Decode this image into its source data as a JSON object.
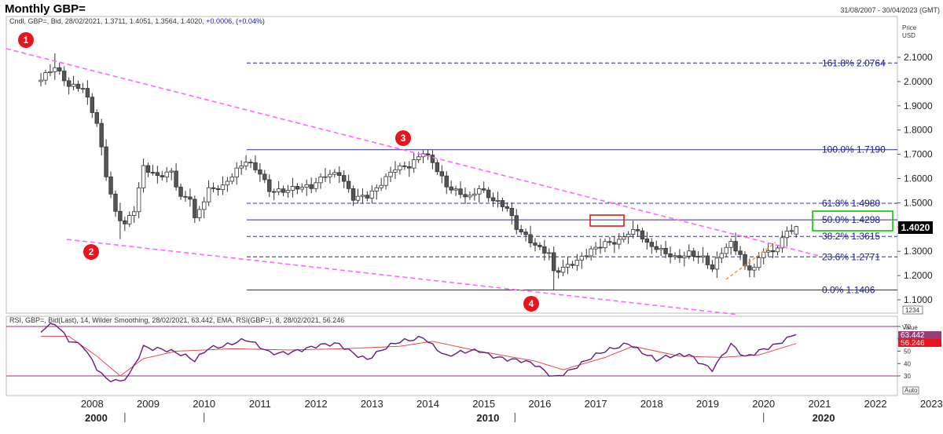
{
  "header": {
    "title": "Monthly GBP=",
    "date_range": "31/08/2007 - 30/04/2023 (GMT)",
    "description_prefix": "Cndl, GBP=, Bid, 28/02/2021, 1.3711, 1.4051, 1.3564, 1.4020,",
    "description_change": "+0.0006, (+0.04%)"
  },
  "price_axis": {
    "title_line1": "Price",
    "title_line2": "USD",
    "ticks": [
      "2.1000",
      "2.0000",
      "1.9000",
      "1.8000",
      "1.7000",
      "1.6000",
      "1.5000",
      "1.4000",
      "1.3000",
      "1.2000",
      "1.1000"
    ],
    "current_price": "1.4020",
    "extra_box": "1234"
  },
  "rsi_panel": {
    "description": "RSI, GBP=, Bid(Last), 14, Wilder Smoothing, 28/02/2021, 63.442, EMA, RSI(GBP=), 8, 28/02/2021, 56.246",
    "value_header": "Value",
    "rsi_value": "63.442",
    "ema_value": "56.246",
    "ticks": [
      "70",
      "60",
      "50",
      "40",
      "30"
    ],
    "auto_label": "Auto"
  },
  "x_axis": {
    "years": [
      "2008",
      "2009",
      "2010",
      "2011",
      "2012",
      "2013",
      "2014",
      "2015",
      "2016",
      "2017",
      "2018",
      "2019",
      "2020",
      "2021",
      "2022",
      "2023"
    ],
    "decades": [
      "2000",
      "2010",
      "2020"
    ]
  },
  "fibonacci": [
    {
      "label": "161.8%",
      "value": "2.0764",
      "price": 2.0764
    },
    {
      "label": "100.0%",
      "value": "1.7190",
      "price": 1.719
    },
    {
      "label": "61.8%",
      "value": "1.4980",
      "price": 1.498
    },
    {
      "label": "50.0%",
      "value": "1.4298",
      "price": 1.4298
    },
    {
      "label": "38.2%",
      "value": "1.3615",
      "price": 1.3615
    },
    {
      "label": "23.6%",
      "value": "1.2771",
      "price": 1.2771
    },
    {
      "label": "0.0%",
      "value": "1.1406",
      "price": 1.1406
    }
  ],
  "annotations": [
    "1",
    "2",
    "3",
    "4"
  ],
  "colors": {
    "candle_up": "#ffffff",
    "candle_down": "#555555",
    "trendline": "#ff66ff",
    "fib_line": "#2b2b8c",
    "rsi_line": "#6a1b7a",
    "ema_line": "#e23b3b",
    "annotation_red": "#e8141b",
    "highlight_green": "#00cc00",
    "highlight_red": "#e8141b",
    "price_box": "#000000",
    "rsi_box": "#993d7a",
    "ema_box": "#e8141b"
  },
  "chart_data": {
    "type": "candlestick",
    "title": "Monthly GBP=",
    "ylabel": "Price USD",
    "ylim": [
      1.08,
      2.16
    ],
    "x_range": [
      "2007-08",
      "2023-04"
    ],
    "last_candle": {
      "date": "28/02/2021",
      "open": 1.3711,
      "high": 1.4051,
      "low": 1.3564,
      "close": 1.402
    },
    "key_points": [
      {
        "label": "1",
        "date": "2007-11",
        "price": 2.1161
      },
      {
        "label": "2",
        "date": "2009-01",
        "price": 1.3503
      },
      {
        "label": "3",
        "date": "2014-07",
        "price": 1.719
      },
      {
        "label": "4",
        "date": "2016-10",
        "price": 1.1406
      }
    ],
    "close_path": [
      [
        "2007-08",
        2.01
      ],
      [
        "2007-11",
        2.07
      ],
      [
        "2008-02",
        1.99
      ],
      [
        "2008-05",
        1.97
      ],
      [
        "2008-08",
        1.82
      ],
      [
        "2008-10",
        1.61
      ],
      [
        "2008-12",
        1.46
      ],
      [
        "2009-02",
        1.42
      ],
      [
        "2009-04",
        1.48
      ],
      [
        "2009-06",
        1.65
      ],
      [
        "2009-09",
        1.6
      ],
      [
        "2009-12",
        1.62
      ],
      [
        "2010-02",
        1.52
      ],
      [
        "2010-04",
        1.53
      ],
      [
        "2010-05",
        1.44
      ],
      [
        "2010-08",
        1.56
      ],
      [
        "2010-11",
        1.56
      ],
      [
        "2011-04",
        1.67
      ],
      [
        "2011-07",
        1.63
      ],
      [
        "2011-09",
        1.56
      ],
      [
        "2011-12",
        1.55
      ],
      [
        "2012-06",
        1.56
      ],
      [
        "2012-09",
        1.62
      ],
      [
        "2012-12",
        1.63
      ],
      [
        "2013-03",
        1.52
      ],
      [
        "2013-06",
        1.52
      ],
      [
        "2013-08",
        1.55
      ],
      [
        "2013-12",
        1.65
      ],
      [
        "2014-03",
        1.66
      ],
      [
        "2014-06",
        1.71
      ],
      [
        "2014-08",
        1.66
      ],
      [
        "2014-11",
        1.56
      ],
      [
        "2015-02",
        1.54
      ],
      [
        "2015-04",
        1.53
      ],
      [
        "2015-06",
        1.57
      ],
      [
        "2015-09",
        1.51
      ],
      [
        "2015-12",
        1.47
      ],
      [
        "2016-02",
        1.39
      ],
      [
        "2016-06",
        1.33
      ],
      [
        "2016-09",
        1.3
      ],
      [
        "2016-10",
        1.22
      ],
      [
        "2016-12",
        1.23
      ],
      [
        "2017-03",
        1.25
      ],
      [
        "2017-06",
        1.3
      ],
      [
        "2017-09",
        1.34
      ],
      [
        "2017-12",
        1.35
      ],
      [
        "2018-02",
        1.38
      ],
      [
        "2018-04",
        1.38
      ],
      [
        "2018-06",
        1.32
      ],
      [
        "2018-09",
        1.3
      ],
      [
        "2018-12",
        1.28
      ],
      [
        "2019-03",
        1.3
      ],
      [
        "2019-06",
        1.27
      ],
      [
        "2019-08",
        1.22
      ],
      [
        "2019-10",
        1.29
      ],
      [
        "2019-12",
        1.33
      ],
      [
        "2020-02",
        1.29
      ],
      [
        "2020-03",
        1.24
      ],
      [
        "2020-05",
        1.24
      ],
      [
        "2020-07",
        1.31
      ],
      [
        "2020-09",
        1.29
      ],
      [
        "2020-12",
        1.37
      ],
      [
        "2021-02",
        1.402
      ]
    ],
    "rsi": {
      "name": "RSI 14 Wilder Smoothing",
      "last": 63.442,
      "ema_name": "EMA 8",
      "ema_last": 56.246,
      "levels": [
        70,
        30
      ],
      "ylim": [
        20,
        80
      ],
      "path": [
        [
          "2007-08",
          65
        ],
        [
          "2007-11",
          72
        ],
        [
          "2008-02",
          60
        ],
        [
          "2008-05",
          56
        ],
        [
          "2008-08",
          36
        ],
        [
          "2008-10",
          26
        ],
        [
          "2009-01",
          24
        ],
        [
          "2009-03",
          31
        ],
        [
          "2009-06",
          55
        ],
        [
          "2009-10",
          52
        ],
        [
          "2010-02",
          46
        ],
        [
          "2010-05",
          42
        ],
        [
          "2010-08",
          54
        ],
        [
          "2011-04",
          58
        ],
        [
          "2011-09",
          49
        ],
        [
          "2012-06",
          52
        ],
        [
          "2012-12",
          56
        ],
        [
          "2013-06",
          44
        ],
        [
          "2014-01",
          57
        ],
        [
          "2014-06",
          63
        ],
        [
          "2014-11",
          45
        ],
        [
          "2015-06",
          51
        ],
        [
          "2015-12",
          44
        ],
        [
          "2016-06",
          38
        ],
        [
          "2016-10",
          30
        ],
        [
          "2017-03",
          38
        ],
        [
          "2017-09",
          49
        ],
        [
          "2018-02",
          58
        ],
        [
          "2018-08",
          42
        ],
        [
          "2019-03",
          48
        ],
        [
          "2019-08",
          36
        ],
        [
          "2019-12",
          54
        ],
        [
          "2020-03",
          44
        ],
        [
          "2020-07",
          53
        ],
        [
          "2020-12",
          60
        ],
        [
          "2021-02",
          63.442
        ]
      ],
      "ema_path": [
        [
          "2007-08",
          62
        ],
        [
          "2008-02",
          62
        ],
        [
          "2008-08",
          46
        ],
        [
          "2009-01",
          30
        ],
        [
          "2009-06",
          44
        ],
        [
          "2010-01",
          50
        ],
        [
          "2011-01",
          52
        ],
        [
          "2012-01",
          51
        ],
        [
          "2013-01",
          52
        ],
        [
          "2014-01",
          54
        ],
        [
          "2014-08",
          58
        ],
        [
          "2015-06",
          50
        ],
        [
          "2016-06",
          42
        ],
        [
          "2016-12",
          35
        ],
        [
          "2017-09",
          45
        ],
        [
          "2018-03",
          54
        ],
        [
          "2019-01",
          46
        ],
        [
          "2019-10",
          45
        ],
        [
          "2020-06",
          47
        ],
        [
          "2021-02",
          56.246
        ]
      ]
    }
  }
}
